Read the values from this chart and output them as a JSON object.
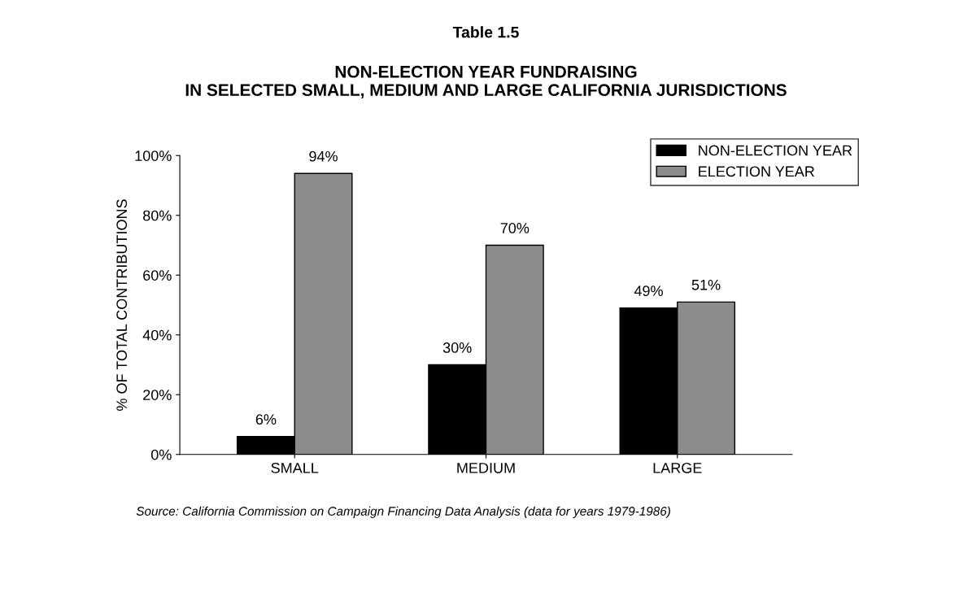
{
  "chart_data": {
    "type": "bar",
    "title": "Table 1.5",
    "subtitle": "NON-ELECTION YEAR FUNDRAISING\nIN SELECTED SMALL, MEDIUM AND LARGE CALIFORNIA JURISDICTIONS",
    "ylabel": "% OF TOTAL CONTRIBUTIONS",
    "categories": [
      "SMALL",
      "MEDIUM",
      "LARGE"
    ],
    "series": [
      {
        "name": "NON-ELECTION YEAR",
        "color": "#000000",
        "values": [
          6,
          30,
          49
        ],
        "value_labels": [
          "6%",
          "30%",
          "49%"
        ]
      },
      {
        "name": "ELECTION YEAR",
        "color": "#8c8c8c",
        "values": [
          94,
          70,
          51
        ],
        "value_labels": [
          "94%",
          "70%",
          "51%"
        ]
      }
    ],
    "ylim": [
      0,
      100
    ],
    "yticks": [
      {
        "value": 0,
        "label": "0%"
      },
      {
        "value": 20,
        "label": "20%"
      },
      {
        "value": 40,
        "label": "40%"
      },
      {
        "value": 60,
        "label": "60%"
      },
      {
        "value": 80,
        "label": "80%"
      },
      {
        "value": 100,
        "label": "100%"
      }
    ],
    "grid": false,
    "legend": "top right",
    "annotations": [
      "Source: California Commission on Campaign Financing Data Analysis (data for years 1979-1986)"
    ]
  }
}
